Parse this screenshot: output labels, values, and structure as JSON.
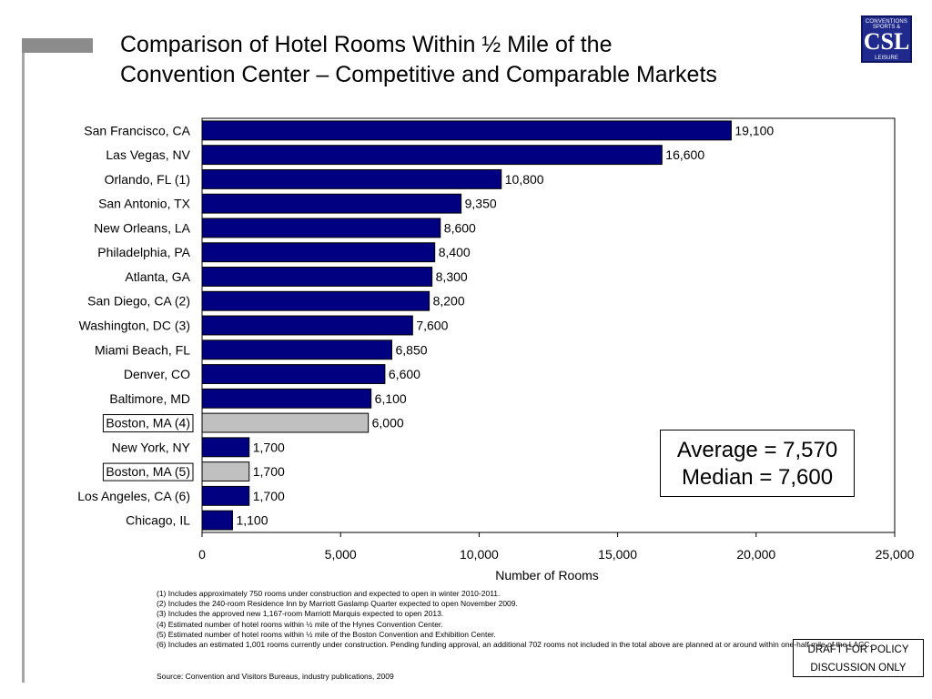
{
  "title": {
    "line1": "Comparison of Hotel Rooms Within ½ Mile of the",
    "line2": "Convention Center – Competitive and Comparable Markets"
  },
  "logo": {
    "line1": "CONVENTIONS",
    "line2": "SPORTS &",
    "mark": "CSL",
    "line4": "LEISURE"
  },
  "stats": {
    "average": "Average = 7,570",
    "median": "Median = 7,600"
  },
  "chart_data": {
    "type": "bar",
    "orientation": "horizontal",
    "title": "Comparison of Hotel Rooms Within ½ Mile of the Convention Center – Competitive and Comparable Markets",
    "xlabel": "Number of Rooms",
    "ylabel": "",
    "xlim": [
      0,
      25000
    ],
    "xticks": [
      0,
      5000,
      10000,
      15000,
      20000,
      25000
    ],
    "xtick_labels": [
      "0",
      "5,000",
      "10,000",
      "15,000",
      "20,000",
      "25,000"
    ],
    "grid": false,
    "legend": "none",
    "colors": {
      "default": "#000080",
      "highlight": "#c0c0c0"
    },
    "categories": [
      "San Francisco, CA",
      "Las Vegas, NV",
      "Orlando, FL (1)",
      "San Antonio, TX",
      "New Orleans, LA",
      "Philadelphia, PA",
      "Atlanta, GA",
      "San Diego, CA (2)",
      "Washington, DC (3)",
      "Miami Beach, FL",
      "Denver, CO",
      "Baltimore, MD",
      "Boston, MA (4)",
      "New York, NY",
      "Boston, MA (5)",
      "Los Angeles, CA (6)",
      "Chicago, IL"
    ],
    "values": [
      19100,
      16600,
      10800,
      9350,
      8600,
      8400,
      8300,
      8200,
      7600,
      6850,
      6600,
      6100,
      6000,
      1700,
      1700,
      1700,
      1100
    ],
    "data_labels": [
      "19,100",
      "16,600",
      "10,800",
      "9,350",
      "8,600",
      "8,400",
      "8,300",
      "8,200",
      "7,600",
      "6,850",
      "6,600",
      "6,100",
      "6,000",
      "1,700",
      "1,700",
      "1,700",
      "1,100"
    ],
    "highlighted": [
      false,
      false,
      false,
      false,
      false,
      false,
      false,
      false,
      false,
      false,
      false,
      false,
      true,
      false,
      true,
      false,
      false
    ]
  },
  "footnotes": [
    "(1) Includes approximately 750 rooms under construction and expected to open in winter 2010-2011.",
    "(2) Includes the 240-room Residence Inn by Marriott Gaslamp Quarter expected to open November 2009.",
    "(3) Includes the approved new 1,167-room Marriott Marquis expected to open 2013.",
    "(4) Estimated number of hotel rooms within ½ mile of the Hynes Convention Center.",
    "(5) Estimated number of hotel rooms within ½ mile of the Boston Convention and Exhibition Center.",
    "(6) Includes an estimated 1,001 rooms currently under construction.  Pending funding approval, an additional 702 rooms not included in the total above are planned at or around within one-half mile of the LACC."
  ],
  "source": "Source: Convention and Visitors Bureaus, industry publications, 2009",
  "draft": {
    "line1": "DRAFT FOR POLICY",
    "line2": "DISCUSSION ONLY"
  }
}
